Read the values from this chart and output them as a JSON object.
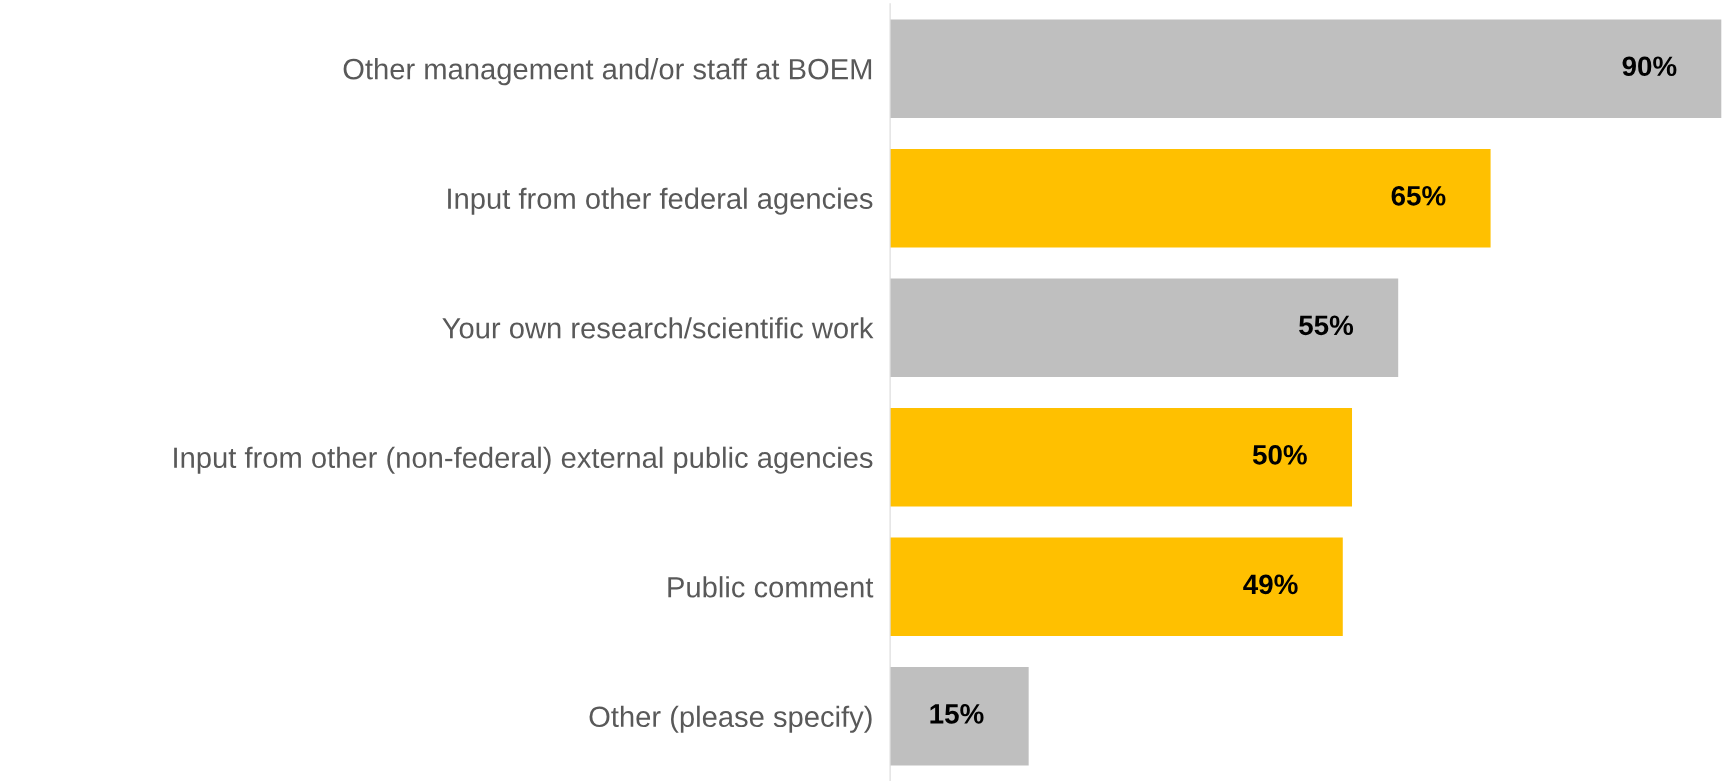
{
  "chart_data": {
    "type": "bar",
    "orientation": "horizontal",
    "categories": [
      "Other management and/or staff at BOEM",
      "Input from other federal agencies",
      "Your own research/scientific work",
      "Input from other (non-federal) external public agencies",
      "Public comment",
      "Other (please specify)"
    ],
    "values": [
      90,
      65,
      55,
      50,
      49,
      15
    ],
    "colors": [
      "#bfbfbf",
      "#ffc000",
      "#bfbfbf",
      "#ffc000",
      "#ffc000",
      "#bfbfbf"
    ],
    "value_labels": [
      "90%",
      "65%",
      "55%",
      "50%",
      "49%",
      "15%"
    ],
    "grid": false,
    "legend": false,
    "tick_labels": "y"
  }
}
